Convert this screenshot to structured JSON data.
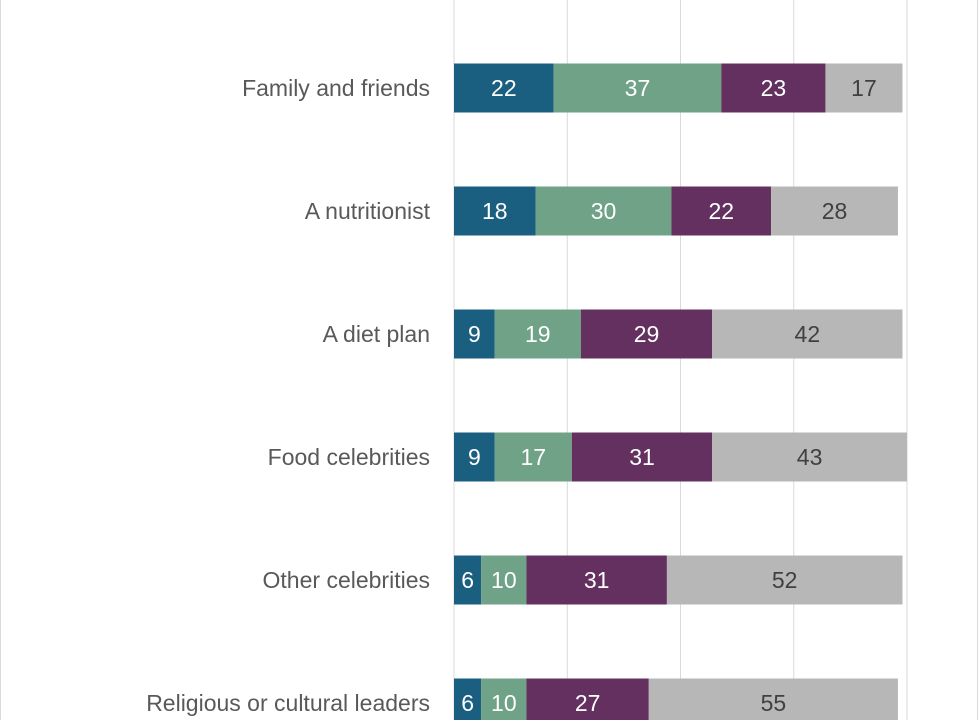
{
  "chart_data": {
    "type": "bar",
    "orientation": "horizontal",
    "stacked": true,
    "categories": [
      "Family and friends",
      "A nutritionist",
      "A diet plan",
      "Food celebrities",
      "Other celebrities",
      "Religious or cultural leaders"
    ],
    "series": [
      {
        "values": [
          22,
          18,
          9,
          9,
          6,
          6
        ],
        "color": "#1a5e80",
        "label_color": "#ffffff"
      },
      {
        "values": [
          37,
          30,
          19,
          17,
          10,
          10
        ],
        "color": "#6fa287",
        "label_color": "#ffffff"
      },
      {
        "values": [
          23,
          22,
          29,
          31,
          31,
          27
        ],
        "color": "#63305f",
        "label_color": "#ffffff"
      },
      {
        "values": [
          17,
          28,
          42,
          43,
          52,
          55
        ],
        "color": "#b7b7b7",
        "label_color": "#404040"
      }
    ],
    "xlim": [
      0,
      100
    ],
    "gridlines": [
      0,
      25,
      50,
      75,
      100
    ],
    "grid": true,
    "legend": "none",
    "title": "",
    "xlabel": "",
    "ylabel": ""
  }
}
